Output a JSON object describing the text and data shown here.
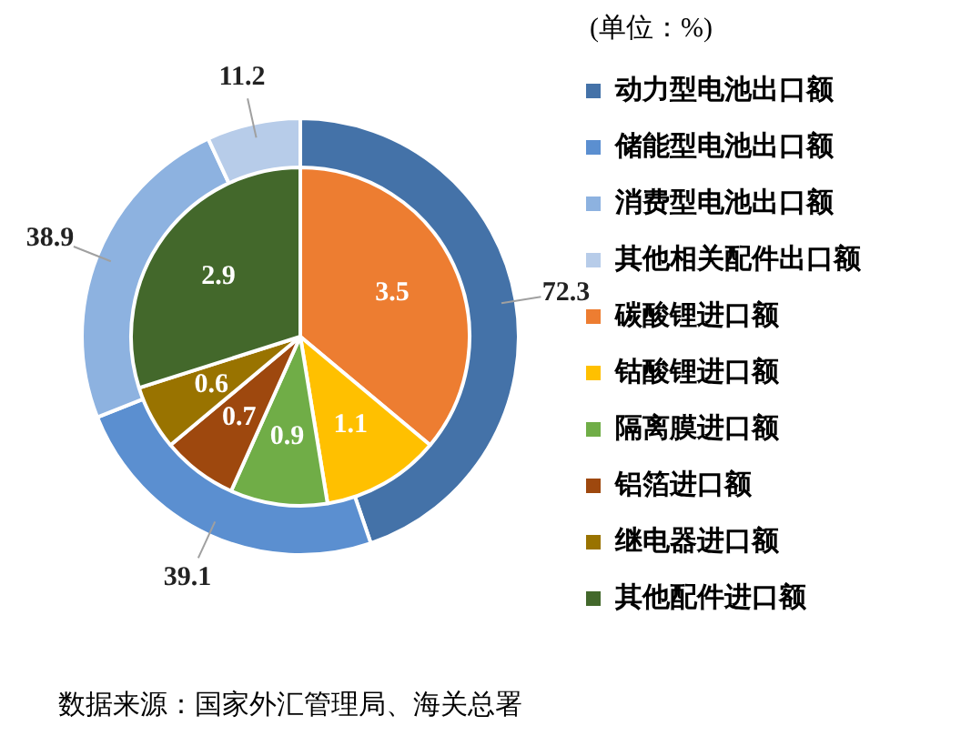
{
  "chart_data": [
    {
      "type": "donut",
      "legend_title": "(单位：%)",
      "categories": [
        "动力型电池出口额",
        "储能型电池出口额",
        "消费型电池出口额",
        "其他相关配件出口额"
      ],
      "values": [
        72.3,
        39.1,
        38.9,
        11.2
      ],
      "colors": [
        "#4472a8",
        "#5b8fd0",
        "#8db2e0",
        "#b7cce9"
      ],
      "data_labels": true,
      "legend": "right",
      "annotations": [
        "数据来源：国家外汇管理局、海关总署"
      ]
    },
    {
      "type": "pie",
      "categories": [
        "碳酸锂进口额",
        "钴酸锂进口额",
        "隔离膜进口额",
        "铝箔进口额",
        "继电器进口额",
        "其他配件进口额"
      ],
      "values": [
        3.5,
        1.1,
        0.9,
        0.7,
        0.6,
        2.9
      ],
      "colors": [
        "#ed7d31",
        "#ffc000",
        "#70ad47",
        "#9e480e",
        "#997300",
        "#43682b"
      ],
      "data_labels": true,
      "legend": "right"
    }
  ]
}
